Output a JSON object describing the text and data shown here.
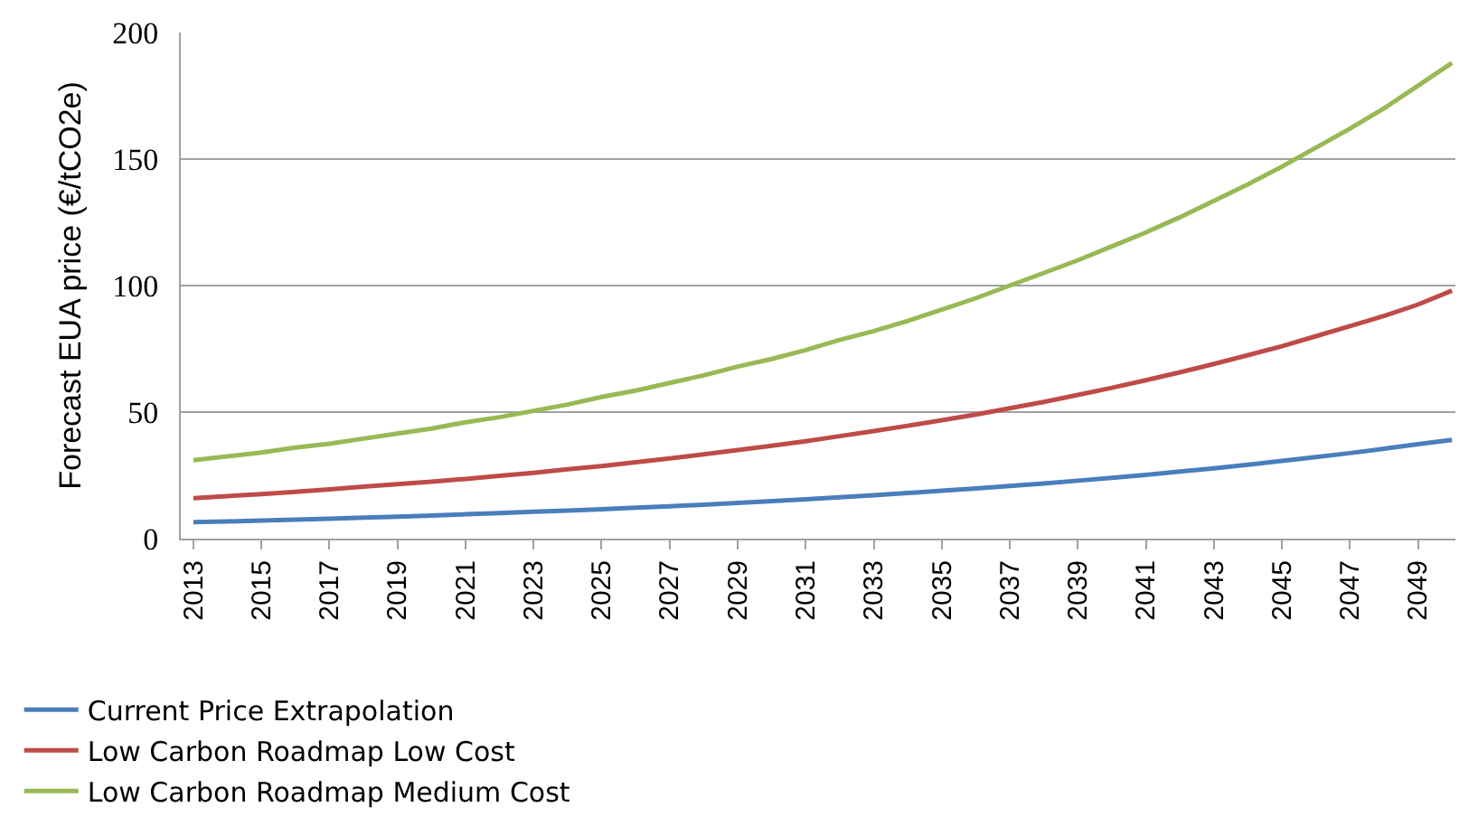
{
  "chart_data": {
    "type": "line",
    "ylabel": "Forecast EUA price (€/tCO2e)",
    "categories": [
      "2013",
      null,
      "2015",
      null,
      "2017",
      null,
      "2019",
      null,
      "2021",
      null,
      "2023",
      null,
      "2025",
      null,
      "2027",
      null,
      "2029",
      null,
      "2031",
      null,
      "2033",
      null,
      "2035",
      null,
      "2037",
      null,
      "2039",
      null,
      "2041",
      null,
      "2043",
      null,
      "2045",
      null,
      "2047",
      null,
      "2049",
      null
    ],
    "series": [
      {
        "name": "Current Price Extrapolation",
        "color": "#4a7ebb",
        "values": [
          6.5,
          6.8,
          7.1,
          7.5,
          7.9,
          8.3,
          8.7,
          9.1,
          9.6,
          10.1,
          10.6,
          11.1,
          11.6,
          12.2,
          12.8,
          13.4,
          14.1,
          14.8,
          15.5,
          16.3,
          17.1,
          18,
          18.9,
          19.8,
          20.8,
          21.8,
          22.9,
          24,
          25.2,
          26.5,
          27.8,
          29.2,
          30.7,
          32.2,
          33.8,
          35.5,
          37.3,
          39
        ]
      },
      {
        "name": "Low Carbon Roadmap Low Cost",
        "color": "#be4b48",
        "values": [
          16,
          16.8,
          17.6,
          18.5,
          19.5,
          20.5,
          21.5,
          22.5,
          23.6,
          24.8,
          26,
          27.4,
          28.7,
          30.2,
          31.7,
          33.3,
          35,
          36.7,
          38.5,
          40.5,
          42.5,
          44.6,
          46.8,
          49,
          51.5,
          54,
          56.8,
          59.6,
          62.6,
          65.7,
          69,
          72.5,
          76,
          80,
          84,
          88,
          92.5,
          98
        ]
      },
      {
        "name": "Low Carbon Roadmap Medium Cost",
        "color": "#98b954",
        "values": [
          31,
          32.5,
          34,
          36,
          37.5,
          39.5,
          41.5,
          43.5,
          46,
          48,
          50.5,
          53,
          56,
          58.5,
          61.5,
          64.5,
          68,
          71,
          74.5,
          78.5,
          82,
          86,
          90.5,
          95,
          100,
          105,
          110,
          115.5,
          121,
          127,
          133.5,
          140,
          147,
          154.5,
          162,
          170,
          179,
          188
        ]
      }
    ],
    "ylim": [
      0,
      200
    ],
    "yticks": [
      0,
      50,
      100,
      150,
      200
    ],
    "grid": "y",
    "legend": "bottom",
    "marker": "none",
    "line_style": "solid"
  }
}
